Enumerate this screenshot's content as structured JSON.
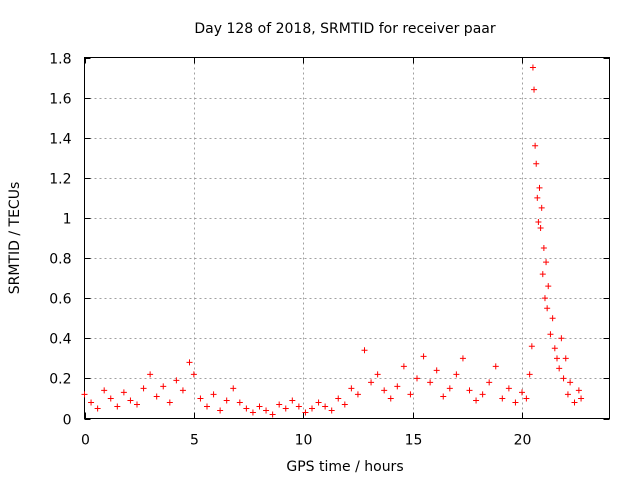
{
  "chart_data": {
    "type": "scatter",
    "title": "Day 128 of 2018, SRMTID for receiver paar",
    "xlabel": "GPS time / hours",
    "ylabel": "SRMTID / TECUs",
    "xlim": [
      0,
      24
    ],
    "ylim": [
      0,
      1.8
    ],
    "x_ticks": [
      0,
      5,
      10,
      15,
      20
    ],
    "x_tick_labels": [
      "0",
      "5",
      "10",
      "15",
      "20"
    ],
    "y_ticks": [
      0,
      0.2,
      0.4,
      0.6,
      0.8,
      1.0,
      1.2,
      1.4,
      1.6,
      1.8
    ],
    "y_tick_labels": [
      "0",
      "0.2",
      "0.4",
      "0.6",
      "0.8",
      "1",
      "1.2",
      "1.4",
      "1.6",
      "1.8"
    ],
    "grid": true,
    "marker": "+",
    "marker_color": "#ff0000",
    "series": [
      {
        "name": "SRMTID",
        "x": [
          0.0,
          0.3,
          0.6,
          0.9,
          1.2,
          1.5,
          1.8,
          2.1,
          2.4,
          2.7,
          3.0,
          3.3,
          3.6,
          3.9,
          4.2,
          4.5,
          4.8,
          5.0,
          5.3,
          5.6,
          5.9,
          6.2,
          6.5,
          6.8,
          7.1,
          7.4,
          7.7,
          8.0,
          8.3,
          8.6,
          8.9,
          9.2,
          9.5,
          9.8,
          10.1,
          10.4,
          10.7,
          11.0,
          11.3,
          11.6,
          11.9,
          12.2,
          12.5,
          12.8,
          13.1,
          13.4,
          13.7,
          14.0,
          14.3,
          14.6,
          14.9,
          15.2,
          15.5,
          15.8,
          16.1,
          16.4,
          16.7,
          17.0,
          17.3,
          17.6,
          17.9,
          18.2,
          18.5,
          18.8,
          19.1,
          19.4,
          19.7,
          20.0,
          20.2,
          20.35,
          20.45,
          20.5,
          20.55,
          20.6,
          20.65,
          20.7,
          20.75,
          20.8,
          20.85,
          20.9,
          20.95,
          21.0,
          21.05,
          21.1,
          21.15,
          21.2,
          21.3,
          21.4,
          21.5,
          21.6,
          21.7,
          21.8,
          21.9,
          22.0,
          22.1,
          22.2,
          22.4,
          22.6,
          22.7
        ],
        "y": [
          0.12,
          0.08,
          0.05,
          0.14,
          0.1,
          0.06,
          0.13,
          0.09,
          0.07,
          0.15,
          0.22,
          0.11,
          0.16,
          0.08,
          0.19,
          0.14,
          0.28,
          0.22,
          0.1,
          0.06,
          0.12,
          0.04,
          0.09,
          0.15,
          0.08,
          0.05,
          0.03,
          0.06,
          0.04,
          0.02,
          0.07,
          0.05,
          0.09,
          0.06,
          0.03,
          0.05,
          0.08,
          0.06,
          0.04,
          0.1,
          0.07,
          0.15,
          0.12,
          0.34,
          0.18,
          0.22,
          0.14,
          0.1,
          0.16,
          0.26,
          0.12,
          0.2,
          0.31,
          0.18,
          0.24,
          0.11,
          0.15,
          0.22,
          0.3,
          0.14,
          0.09,
          0.12,
          0.18,
          0.26,
          0.1,
          0.15,
          0.08,
          0.13,
          0.1,
          0.22,
          0.36,
          1.75,
          1.64,
          1.36,
          1.27,
          1.1,
          0.98,
          1.15,
          0.95,
          1.05,
          0.72,
          0.85,
          0.6,
          0.78,
          0.55,
          0.66,
          0.42,
          0.5,
          0.35,
          0.3,
          0.25,
          0.4,
          0.2,
          0.3,
          0.12,
          0.18,
          0.08,
          0.14,
          0.1
        ]
      }
    ]
  }
}
